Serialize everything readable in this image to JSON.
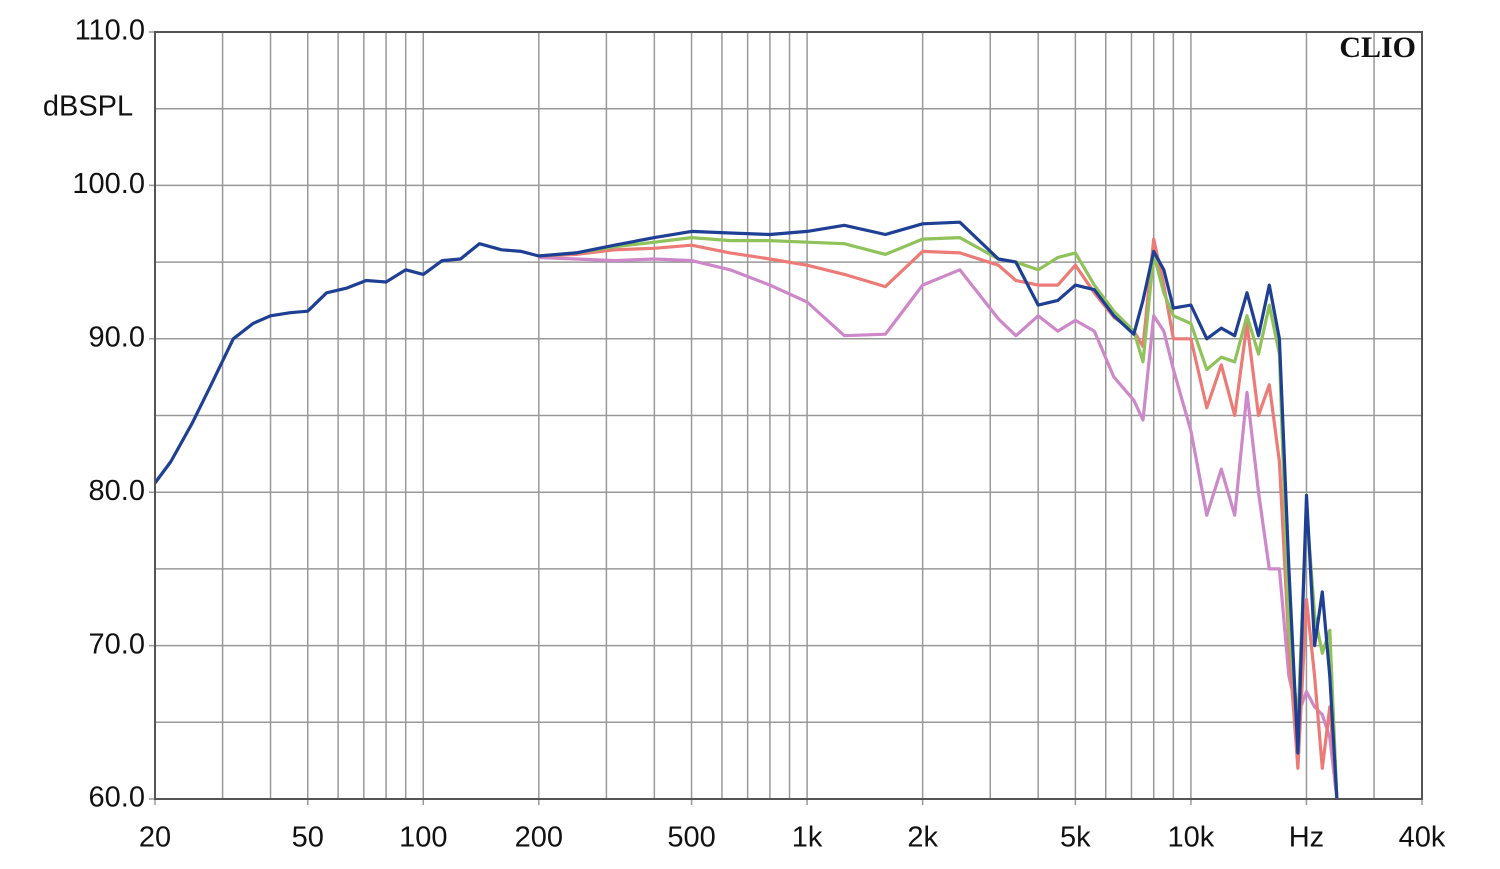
{
  "chart_data": {
    "type": "line",
    "ylabel": "dBSPL",
    "watermark": "CLIO",
    "xscale": "log",
    "grid": true,
    "xlim": [
      20,
      40000
    ],
    "ylim": [
      60,
      110
    ],
    "xticks": [
      20,
      50,
      100,
      200,
      500,
      {
        "value": 1000,
        "label": "1k"
      },
      {
        "value": 2000,
        "label": "2k"
      },
      {
        "value": 5000,
        "label": "5k"
      },
      {
        "value": 10000,
        "label": "10k"
      },
      {
        "value": 20000,
        "label": "Hz"
      },
      {
        "value": 40000,
        "label": "40k"
      }
    ],
    "xminor": [
      30,
      40,
      60,
      70,
      80,
      90,
      300,
      400,
      600,
      700,
      800,
      900,
      3000,
      4000,
      6000,
      7000,
      8000,
      9000,
      30000
    ],
    "yticks": [
      {
        "value": 60,
        "label": "60.0"
      },
      {
        "value": 70,
        "label": "70.0"
      },
      {
        "value": 80,
        "label": "80.0"
      },
      {
        "value": 90,
        "label": "90.0"
      },
      {
        "value": 100,
        "label": "100.0"
      },
      {
        "value": 110,
        "label": "110.0"
      }
    ],
    "yminor": [
      65,
      75,
      85,
      95,
      105
    ],
    "x": [
      20,
      22,
      25,
      28,
      32,
      36,
      40,
      45,
      50,
      56,
      63,
      71,
      80,
      90,
      100,
      112,
      125,
      140,
      160,
      180,
      200,
      250,
      315,
      400,
      500,
      630,
      800,
      1000,
      1250,
      1600,
      2000,
      2500,
      3150,
      3500,
      4000,
      4500,
      5000,
      5600,
      6300,
      7100,
      7500,
      8000,
      8500,
      9000,
      10000,
      11000,
      12000,
      13000,
      14000,
      15000,
      16000,
      17000,
      18000,
      19000,
      20000,
      21000,
      22000,
      23000,
      24000
    ],
    "series": [
      {
        "color": "#cc88c8",
        "values": [
          null,
          null,
          null,
          null,
          null,
          null,
          null,
          null,
          null,
          null,
          null,
          null,
          null,
          null,
          null,
          null,
          null,
          null,
          null,
          null,
          95.3,
          95.2,
          95.1,
          95.2,
          95.1,
          94.5,
          93.5,
          92.4,
          90.2,
          90.3,
          93.5,
          94.5,
          91.3,
          90.2,
          91.5,
          90.5,
          91.2,
          90.5,
          87.5,
          86,
          84.7,
          91.5,
          90.5,
          88,
          84,
          78.5,
          81.5,
          78.5,
          86.5,
          80,
          75,
          75,
          68,
          65.5,
          67,
          66,
          65.5,
          64,
          60
        ]
      },
      {
        "color": "#ec7b78",
        "values": [
          null,
          null,
          null,
          null,
          null,
          null,
          null,
          null,
          null,
          null,
          null,
          null,
          null,
          null,
          null,
          null,
          null,
          null,
          null,
          null,
          95.4,
          95.5,
          95.8,
          95.9,
          96.1,
          95.6,
          95.2,
          94.8,
          94.2,
          93.4,
          95.7,
          95.6,
          94.8,
          93.8,
          93.5,
          93.5,
          94.8,
          93,
          91.4,
          90.5,
          89.5,
          96.5,
          93.5,
          90,
          90,
          85.5,
          88.3,
          85,
          91,
          85,
          87,
          82,
          70,
          62,
          73,
          68,
          62,
          66,
          60
        ]
      },
      {
        "color": "#8fc25a",
        "values": [
          null,
          null,
          null,
          null,
          null,
          null,
          null,
          null,
          null,
          null,
          null,
          null,
          null,
          null,
          null,
          null,
          null,
          null,
          null,
          null,
          95.4,
          95.6,
          96,
          96.3,
          96.6,
          96.4,
          96.4,
          96.3,
          96.2,
          95.5,
          96.5,
          96.6,
          95.2,
          95,
          94.5,
          95.3,
          95.6,
          93.5,
          91.8,
          90.5,
          88.5,
          95.5,
          93,
          91.5,
          91,
          88,
          88.8,
          88.5,
          91.5,
          89,
          92.2,
          89,
          71,
          65,
          79,
          72,
          69.5,
          71,
          60
        ]
      },
      {
        "color": "#1f3f94",
        "values": [
          80.6,
          82,
          84.5,
          87,
          90,
          91,
          91.5,
          91.7,
          91.8,
          93,
          93.3,
          93.8,
          93.7,
          94.5,
          94.2,
          95.1,
          95.2,
          96.2,
          95.8,
          95.7,
          95.4,
          95.6,
          96.1,
          96.6,
          97,
          96.9,
          96.8,
          97,
          97.4,
          96.8,
          97.5,
          97.6,
          95.2,
          95,
          92.2,
          92.5,
          93.5,
          93.2,
          91.5,
          90.3,
          92.5,
          95.7,
          94.5,
          92,
          92.2,
          90,
          90.7,
          90.2,
          93,
          90.2,
          93.5,
          90,
          75,
          63,
          79.8,
          70,
          73.5,
          68,
          60
        ]
      }
    ]
  }
}
